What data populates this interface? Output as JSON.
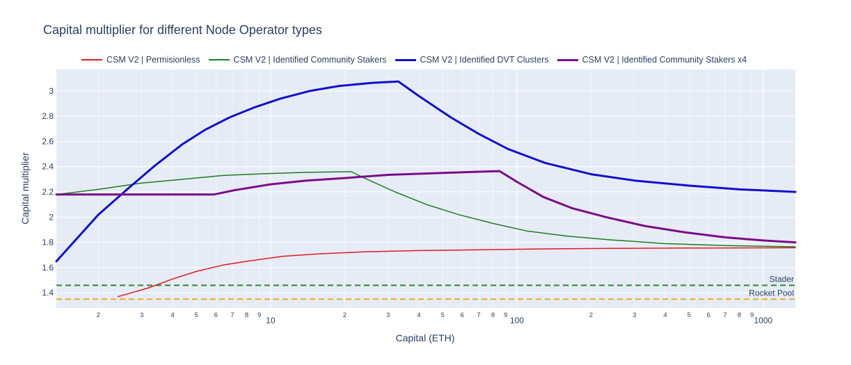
{
  "chart_data": {
    "type": "line",
    "title": "Capital multiplier for different Node Operator types",
    "xlabel": "Capital (ETH)",
    "ylabel": "Capital multiplier",
    "x_scale": "log",
    "xlim": [
      1.35,
      1350
    ],
    "ylim": [
      1.28,
      3.17
    ],
    "grid": true,
    "legend_placement": "top",
    "x_major_ticks": [
      10,
      100,
      1000
    ],
    "x_minor_ticks": [
      2,
      3,
      4,
      5,
      6,
      7,
      8,
      9,
      20,
      30,
      40,
      50,
      60,
      70,
      80,
      90,
      200,
      300,
      400,
      500,
      600,
      700,
      800,
      900
    ],
    "x_tick_labels": {
      "major": [
        "10",
        "100",
        "1000"
      ],
      "minor": [
        "2",
        "3",
        "4",
        "5",
        "6",
        "7",
        "8",
        "9",
        "2",
        "3",
        "4",
        "5",
        "6",
        "7",
        "8",
        "9",
        "2",
        "3",
        "4",
        "5",
        "6",
        "7",
        "8",
        "9"
      ]
    },
    "y_ticks": [
      1.4,
      1.6,
      1.8,
      2,
      2.2,
      2.4,
      2.6,
      2.8,
      3
    ],
    "y_tick_labels": [
      "1.4",
      "1.6",
      "1.8",
      "2",
      "2.2",
      "2.4",
      "2.6",
      "2.8",
      "3"
    ],
    "series": [
      {
        "name": "CSM V2 | Permisionless",
        "color": "#e31a1c",
        "width": "thin",
        "points": [
          [
            2.4,
            1.37
          ],
          [
            3.2,
            1.44
          ],
          [
            4,
            1.51
          ],
          [
            5,
            1.57
          ],
          [
            6.4,
            1.62
          ],
          [
            8,
            1.65
          ],
          [
            11.2,
            1.69
          ],
          [
            16,
            1.71
          ],
          [
            24,
            1.725
          ],
          [
            40,
            1.735
          ],
          [
            64,
            1.74
          ],
          [
            120,
            1.748
          ],
          [
            240,
            1.752
          ],
          [
            480,
            1.755
          ],
          [
            1350,
            1.757
          ]
        ]
      },
      {
        "name": "CSM V2 | Identified Community Stakers",
        "color": "#1a7f1a",
        "width": "thin",
        "points": [
          [
            1.35,
            2.18
          ],
          [
            2,
            2.22
          ],
          [
            3,
            2.27
          ],
          [
            4.4,
            2.3
          ],
          [
            6.4,
            2.33
          ],
          [
            9.6,
            2.345
          ],
          [
            14,
            2.355
          ],
          [
            20.5,
            2.36
          ],
          [
            21.3,
            2.36
          ],
          [
            24,
            2.31
          ],
          [
            32,
            2.2
          ],
          [
            43,
            2.1
          ],
          [
            58,
            2.02
          ],
          [
            80,
            1.95
          ],
          [
            110,
            1.89
          ],
          [
            160,
            1.85
          ],
          [
            240,
            1.82
          ],
          [
            400,
            1.79
          ],
          [
            700,
            1.775
          ],
          [
            1350,
            1.765
          ]
        ]
      },
      {
        "name": "CSM V2 | Identified DVT Clusters",
        "color": "#0f0fd0",
        "width": "thick",
        "points": [
          [
            1.35,
            1.65
          ],
          [
            2,
            2.02
          ],
          [
            2.65,
            2.23
          ],
          [
            3.4,
            2.41
          ],
          [
            4.4,
            2.58
          ],
          [
            5.4,
            2.69
          ],
          [
            6.8,
            2.79
          ],
          [
            8.6,
            2.87
          ],
          [
            11,
            2.94
          ],
          [
            14.4,
            3.0
          ],
          [
            19,
            3.04
          ],
          [
            26,
            3.065
          ],
          [
            33,
            3.075
          ],
          [
            40,
            2.96
          ],
          [
            54,
            2.79
          ],
          [
            70,
            2.66
          ],
          [
            92,
            2.54
          ],
          [
            130,
            2.43
          ],
          [
            200,
            2.34
          ],
          [
            300,
            2.29
          ],
          [
            500,
            2.25
          ],
          [
            800,
            2.22
          ],
          [
            1350,
            2.2
          ]
        ]
      },
      {
        "name": "CSM V2 | Identified Community Stakers x4",
        "color": "#7b0a8a",
        "width": "thick",
        "points": [
          [
            1.35,
            2.18
          ],
          [
            3,
            2.18
          ],
          [
            5.9,
            2.18
          ],
          [
            7.2,
            2.215
          ],
          [
            10,
            2.26
          ],
          [
            14,
            2.29
          ],
          [
            20,
            2.31
          ],
          [
            30,
            2.335
          ],
          [
            50,
            2.35
          ],
          [
            70,
            2.36
          ],
          [
            85,
            2.365
          ],
          [
            100,
            2.28
          ],
          [
            128,
            2.16
          ],
          [
            168,
            2.07
          ],
          [
            230,
            2.0
          ],
          [
            330,
            1.93
          ],
          [
            480,
            1.88
          ],
          [
            700,
            1.84
          ],
          [
            1000,
            1.815
          ],
          [
            1350,
            1.8
          ]
        ]
      }
    ],
    "reference_lines": [
      {
        "label": "Stader",
        "y": 1.46,
        "color": "#228B22",
        "style": "dashed"
      },
      {
        "label": "Rocket Pool",
        "y": 1.35,
        "color": "#f5a623",
        "style": "dashed"
      }
    ]
  }
}
